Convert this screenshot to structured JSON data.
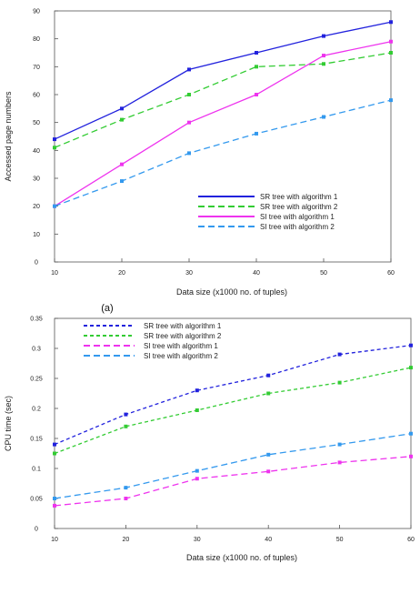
{
  "chart_data": [
    {
      "type": "line",
      "panel_label": "(a)",
      "title": "",
      "xlabel": "Data size (x1000 no. of tuples)",
      "ylabel": "Accessed page numbers",
      "xlim": [
        10,
        60
      ],
      "ylim": [
        0,
        90
      ],
      "x": [
        10,
        20,
        30,
        40,
        50,
        60
      ],
      "y_ticks": [
        0,
        10,
        20,
        30,
        40,
        50,
        60,
        70,
        80,
        90
      ],
      "y_tick_labels": [
        "0",
        "10",
        "20",
        "30",
        "40",
        "50",
        "60",
        "70",
        "80",
        "90"
      ],
      "grid": false,
      "legend_position": "bottom-right",
      "series": [
        {
          "name": "SR tree with algorithm 1",
          "color": "#2222dd",
          "dash": "solid",
          "values": [
            44,
            55,
            69,
            75,
            81,
            86
          ]
        },
        {
          "name": "SR tree with algorithm 2",
          "color": "#33cc33",
          "dash": "dashed",
          "values": [
            41,
            51,
            60,
            70,
            71,
            75
          ]
        },
        {
          "name": "SI tree with algorithm 1",
          "color": "#ee33ee",
          "dash": "solid",
          "values": [
            20,
            35,
            50,
            60,
            74,
            79
          ]
        },
        {
          "name": "SI tree with algorithm 2",
          "color": "#3399ee",
          "dash": "dashed",
          "values": [
            20,
            29,
            39,
            46,
            52,
            58
          ]
        }
      ]
    },
    {
      "type": "line",
      "panel_label": "",
      "title": "",
      "xlabel": "Data size (x1000 no. of tuples)",
      "ylabel": "CPU time (sec)",
      "xlim": [
        10,
        60
      ],
      "ylim": [
        0,
        0.35
      ],
      "x": [
        10,
        20,
        30,
        40,
        50,
        60
      ],
      "y_ticks": [
        0,
        0.05,
        0.1,
        0.15,
        0.2,
        0.25,
        0.3,
        0.35
      ],
      "y_tick_labels": [
        "0",
        "0.05",
        "0.1",
        "0.15",
        "0.2",
        "0.25",
        "0.3",
        "0.35"
      ],
      "grid": false,
      "legend_position": "top-left",
      "series": [
        {
          "name": "SR tree with algorithm 1",
          "color": "#2222dd",
          "dash": "dotted",
          "values": [
            0.14,
            0.19,
            0.23,
            0.255,
            0.29,
            0.305
          ]
        },
        {
          "name": "SR tree with algorithm 2",
          "color": "#33cc33",
          "dash": "dotted",
          "values": [
            0.125,
            0.17,
            0.197,
            0.225,
            0.243,
            0.268
          ]
        },
        {
          "name": "SI tree with algorithm 1",
          "color": "#ee33ee",
          "dash": "dashed",
          "values": [
            0.038,
            0.05,
            0.083,
            0.095,
            0.11,
            0.12
          ]
        },
        {
          "name": "SI tree with algorithm 2",
          "color": "#3399ee",
          "dash": "dashed",
          "values": [
            0.05,
            0.068,
            0.096,
            0.123,
            0.14,
            0.158
          ]
        }
      ]
    }
  ]
}
